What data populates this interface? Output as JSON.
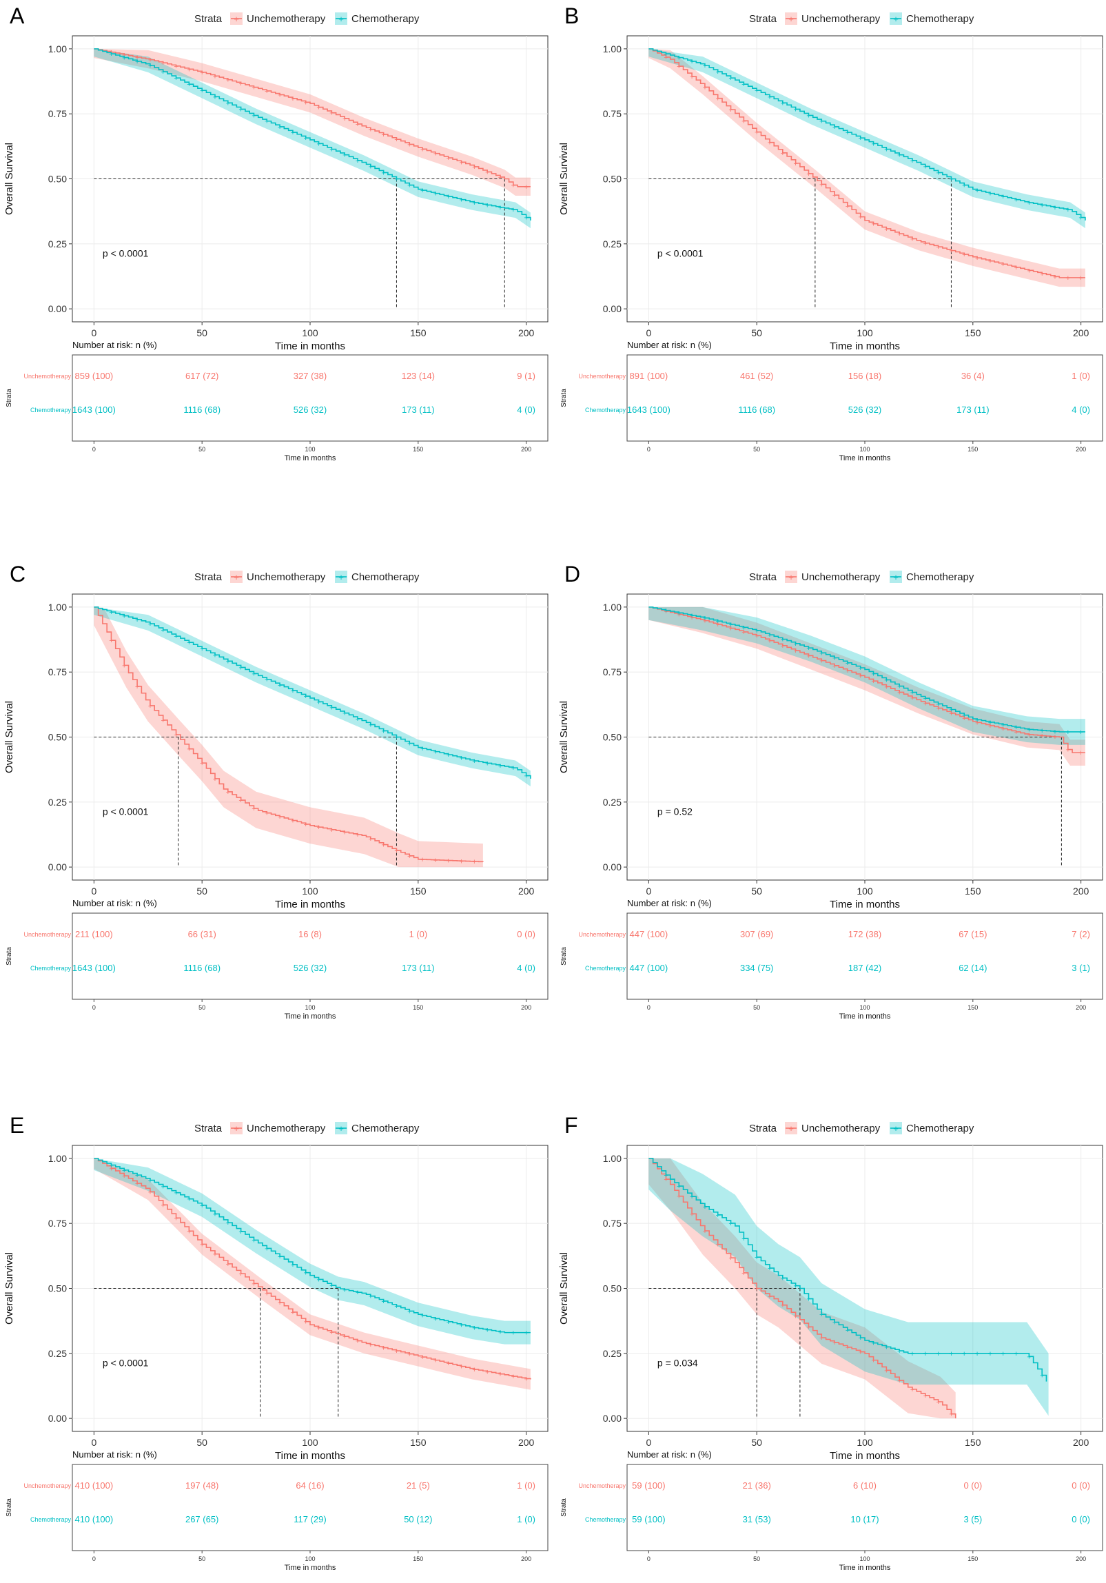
{
  "figure": {
    "legend_title": "Strata",
    "series_names": [
      "Unchemotherapy",
      "Chemotherapy"
    ],
    "colors": {
      "unchemo": "#F8766D",
      "chemo": "#00BFC4",
      "axis": "#444444",
      "grid": "#EBEBEB"
    },
    "y_axis_label": "Overall Survival",
    "x_axis_label": "Time in months",
    "risk_title": "Number at risk: n (%)",
    "risk_y_label": "Strata",
    "risk_row_labels": [
      "Unchemotherapy",
      "Chemotherapy"
    ]
  },
  "chart_data": [
    {
      "panel": "A",
      "type": "line",
      "pvalue": "p < 0.0001",
      "xlim": [
        0,
        200
      ],
      "ylim": [
        0,
        1
      ],
      "x_ticks": [
        0,
        50,
        100,
        150,
        200
      ],
      "y_ticks": [
        "0.00",
        "0.25",
        "0.50",
        "0.75",
        "1.00"
      ],
      "medians": [
        190,
        140
      ],
      "series": [
        {
          "name": "Unchemotherapy",
          "x": [
            0,
            25,
            50,
            75,
            100,
            125,
            150,
            175,
            190,
            195,
            202
          ],
          "y": [
            1,
            0.96,
            0.91,
            0.85,
            0.79,
            0.7,
            0.62,
            0.55,
            0.5,
            0.47,
            0.47
          ],
          "ci": 0.035
        },
        {
          "name": "Chemotherapy",
          "x": [
            0,
            25,
            50,
            75,
            100,
            125,
            140,
            150,
            175,
            195,
            202
          ],
          "y": [
            1,
            0.94,
            0.84,
            0.74,
            0.65,
            0.56,
            0.5,
            0.46,
            0.41,
            0.38,
            0.34
          ],
          "ci": 0.03
        }
      ],
      "risk": {
        "times": [
          0,
          50,
          100,
          150,
          200
        ],
        "Unchemotherapy": [
          "859 (100)",
          "617 (72)",
          "327 (38)",
          "123 (14)",
          "9 (1)"
        ],
        "Chemotherapy": [
          "1643 (100)",
          "1116 (68)",
          "526 (32)",
          "173 (11)",
          "4 (0)"
        ]
      }
    },
    {
      "panel": "B",
      "type": "line",
      "pvalue": "p < 0.0001",
      "xlim": [
        0,
        200
      ],
      "ylim": [
        0,
        1
      ],
      "x_ticks": [
        0,
        50,
        100,
        150,
        200
      ],
      "y_ticks": [
        "0.00",
        "0.25",
        "0.50",
        "0.75",
        "1.00"
      ],
      "medians": [
        77,
        140
      ],
      "series": [
        {
          "name": "Unchemotherapy",
          "x": [
            0,
            10,
            25,
            50,
            77,
            100,
            125,
            150,
            175,
            190,
            202
          ],
          "y": [
            1,
            0.96,
            0.86,
            0.68,
            0.5,
            0.34,
            0.26,
            0.2,
            0.15,
            0.12,
            0.12
          ],
          "ci": 0.035
        },
        {
          "name": "Chemotherapy",
          "x": [
            0,
            25,
            50,
            75,
            100,
            125,
            140,
            150,
            175,
            195,
            202
          ],
          "y": [
            1,
            0.94,
            0.84,
            0.74,
            0.65,
            0.56,
            0.5,
            0.46,
            0.41,
            0.38,
            0.34
          ],
          "ci": 0.03
        }
      ],
      "risk": {
        "times": [
          0,
          50,
          100,
          150,
          200
        ],
        "Unchemotherapy": [
          "891 (100)",
          "461 (52)",
          "156 (18)",
          "36 (4)",
          "1 (0)"
        ],
        "Chemotherapy": [
          "1643 (100)",
          "1116 (68)",
          "526 (32)",
          "173 (11)",
          "4 (0)"
        ]
      }
    },
    {
      "panel": "C",
      "type": "line",
      "pvalue": "p < 0.0001",
      "xlim": [
        0,
        200
      ],
      "ylim": [
        0,
        1
      ],
      "x_ticks": [
        0,
        50,
        100,
        150,
        200
      ],
      "y_ticks": [
        "0.00",
        "0.25",
        "0.50",
        "0.75",
        "1.00"
      ],
      "medians": [
        39,
        140
      ],
      "series": [
        {
          "name": "Unchemotherapy",
          "x": [
            0,
            5,
            15,
            25,
            39,
            50,
            60,
            75,
            100,
            125,
            141,
            150,
            180
          ],
          "y": [
            1,
            0.92,
            0.76,
            0.63,
            0.5,
            0.4,
            0.3,
            0.22,
            0.16,
            0.12,
            0.06,
            0.03,
            0.02
          ],
          "ci": 0.07
        },
        {
          "name": "Chemotherapy",
          "x": [
            0,
            25,
            50,
            75,
            100,
            125,
            140,
            150,
            175,
            195,
            202
          ],
          "y": [
            1,
            0.94,
            0.84,
            0.74,
            0.65,
            0.56,
            0.5,
            0.46,
            0.41,
            0.38,
            0.34
          ],
          "ci": 0.03
        }
      ],
      "risk": {
        "times": [
          0,
          50,
          100,
          150,
          200
        ],
        "Unchemotherapy": [
          "211 (100)",
          "66 (31)",
          "16 (8)",
          "1 (0)",
          "0 (0)"
        ],
        "Chemotherapy": [
          "1643 (100)",
          "1116 (68)",
          "526 (32)",
          "173 (11)",
          "4 (0)"
        ]
      }
    },
    {
      "panel": "D",
      "type": "line",
      "pvalue": "p = 0.52",
      "xlim": [
        0,
        200
      ],
      "ylim": [
        0,
        1
      ],
      "x_ticks": [
        0,
        50,
        100,
        150,
        200
      ],
      "y_ticks": [
        "0.00",
        "0.25",
        "0.50",
        "0.75",
        "1.00"
      ],
      "medians": [
        191
      ],
      "series": [
        {
          "name": "Unchemotherapy",
          "x": [
            0,
            25,
            50,
            75,
            100,
            125,
            150,
            175,
            190,
            195,
            202
          ],
          "y": [
            1,
            0.95,
            0.89,
            0.81,
            0.73,
            0.64,
            0.56,
            0.51,
            0.5,
            0.44,
            0.44
          ],
          "ci": 0.05
        },
        {
          "name": "Chemotherapy",
          "x": [
            0,
            25,
            50,
            75,
            100,
            125,
            150,
            175,
            190,
            202
          ],
          "y": [
            1,
            0.96,
            0.91,
            0.84,
            0.76,
            0.66,
            0.57,
            0.53,
            0.52,
            0.52
          ],
          "ci": 0.05
        }
      ],
      "risk": {
        "times": [
          0,
          50,
          100,
          150,
          200
        ],
        "Unchemotherapy": [
          "447 (100)",
          "307 (69)",
          "172 (38)",
          "67 (15)",
          "7 (2)"
        ],
        "Chemotherapy": [
          "447 (100)",
          "334 (75)",
          "187 (42)",
          "62 (14)",
          "3 (1)"
        ]
      }
    },
    {
      "panel": "E",
      "type": "line",
      "pvalue": "p < 0.0001",
      "xlim": [
        0,
        200
      ],
      "ylim": [
        0,
        1
      ],
      "x_ticks": [
        0,
        50,
        100,
        150,
        200
      ],
      "y_ticks": [
        "0.00",
        "0.25",
        "0.50",
        "0.75",
        "1.00"
      ],
      "medians": [
        77,
        113
      ],
      "series": [
        {
          "name": "Unchemotherapy",
          "x": [
            0,
            25,
            50,
            77,
            100,
            125,
            150,
            175,
            202
          ],
          "y": [
            1,
            0.88,
            0.67,
            0.5,
            0.36,
            0.29,
            0.24,
            0.19,
            0.15
          ],
          "ci": 0.04
        },
        {
          "name": "Chemotherapy",
          "x": [
            0,
            25,
            50,
            75,
            100,
            113,
            125,
            150,
            175,
            190,
            202
          ],
          "y": [
            1,
            0.92,
            0.82,
            0.68,
            0.55,
            0.5,
            0.48,
            0.4,
            0.35,
            0.33,
            0.33
          ],
          "ci": 0.045
        }
      ],
      "risk": {
        "times": [
          0,
          50,
          100,
          150,
          200
        ],
        "Unchemotherapy": [
          "410 (100)",
          "197 (48)",
          "64 (16)",
          "21 (5)",
          "1 (0)"
        ],
        "Chemotherapy": [
          "410 (100)",
          "267 (65)",
          "117 (29)",
          "50 (12)",
          "1 (0)"
        ]
      }
    },
    {
      "panel": "F",
      "type": "line",
      "pvalue": "p = 0.034",
      "xlim": [
        0,
        200
      ],
      "ylim": [
        0,
        1
      ],
      "x_ticks": [
        0,
        50,
        100,
        150,
        200
      ],
      "y_ticks": [
        "0.00",
        "0.25",
        "0.50",
        "0.75",
        "1.00"
      ],
      "medians": [
        50,
        70
      ],
      "series": [
        {
          "name": "Unchemotherapy",
          "x": [
            0,
            10,
            25,
            40,
            50,
            60,
            70,
            80,
            100,
            120,
            135,
            142
          ],
          "y": [
            1,
            0.9,
            0.73,
            0.6,
            0.5,
            0.45,
            0.38,
            0.31,
            0.25,
            0.12,
            0.06,
            0.0
          ],
          "ci": 0.1
        },
        {
          "name": "Chemotherapy",
          "x": [
            0,
            10,
            25,
            40,
            50,
            60,
            70,
            80,
            100,
            120,
            150,
            175,
            185
          ],
          "y": [
            1,
            0.92,
            0.82,
            0.74,
            0.62,
            0.55,
            0.5,
            0.4,
            0.3,
            0.25,
            0.25,
            0.25,
            0.13
          ],
          "ci": 0.12
        }
      ],
      "risk": {
        "times": [
          0,
          50,
          100,
          150,
          200
        ],
        "Unchemotherapy": [
          "59 (100)",
          "21 (36)",
          "6 (10)",
          "0 (0)",
          "0 (0)"
        ],
        "Chemotherapy": [
          "59 (100)",
          "31 (53)",
          "10 (17)",
          "3 (5)",
          "0 (0)"
        ]
      }
    }
  ]
}
